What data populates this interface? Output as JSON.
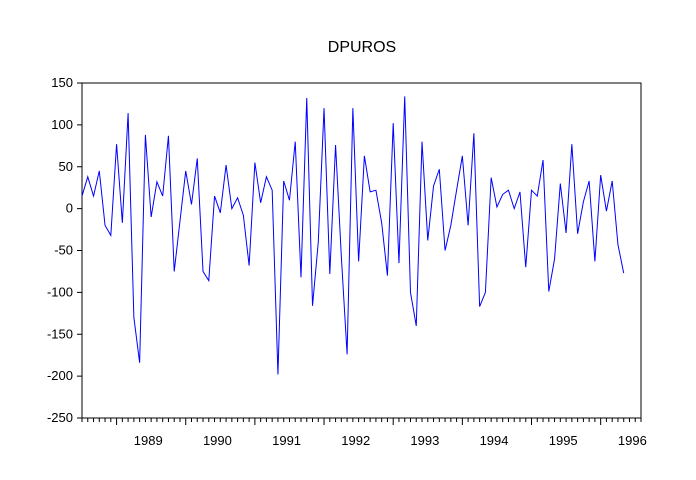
{
  "chart_data": {
    "type": "line",
    "title": "DPUROS",
    "xlabel": "",
    "ylabel": "",
    "ylim": [
      -250,
      150
    ],
    "y_ticks": [
      "150",
      "100",
      "50",
      "0",
      "-50",
      "-100",
      "-150",
      "-200",
      "-250"
    ],
    "x_ticks": [
      "1989",
      "1990",
      "1991",
      "1992",
      "1993",
      "1994",
      "1995",
      "1996"
    ],
    "x_start": "1988-07",
    "x_end": "1996-08",
    "grid": false,
    "legend": "none",
    "series": [
      {
        "color": "#0000ff",
        "frequency": "monthly",
        "values": [
          15,
          38,
          15,
          45,
          -20,
          -32,
          77,
          -17,
          114,
          -130,
          -184,
          88,
          -10,
          32,
          15,
          87,
          -75,
          -15,
          45,
          5,
          60,
          -75,
          -86,
          15,
          -5,
          52,
          0,
          13,
          -8,
          -68,
          55,
          7,
          38,
          22,
          -198,
          33,
          10,
          80,
          -82,
          132,
          -116,
          -40,
          120,
          -78,
          76,
          -57,
          -174,
          120,
          -63,
          63,
          20,
          22,
          -17,
          -80,
          102,
          -65,
          134,
          -100,
          -140,
          80,
          -38,
          27,
          47,
          -50,
          -20,
          22,
          63,
          -20,
          90,
          -117,
          -100,
          37,
          2,
          17,
          22,
          0,
          20,
          -70,
          22,
          15,
          58,
          -99,
          -60,
          30,
          -29,
          77,
          -30,
          8,
          33,
          -63,
          40,
          -3,
          33,
          -43,
          -77
        ]
      }
    ]
  }
}
